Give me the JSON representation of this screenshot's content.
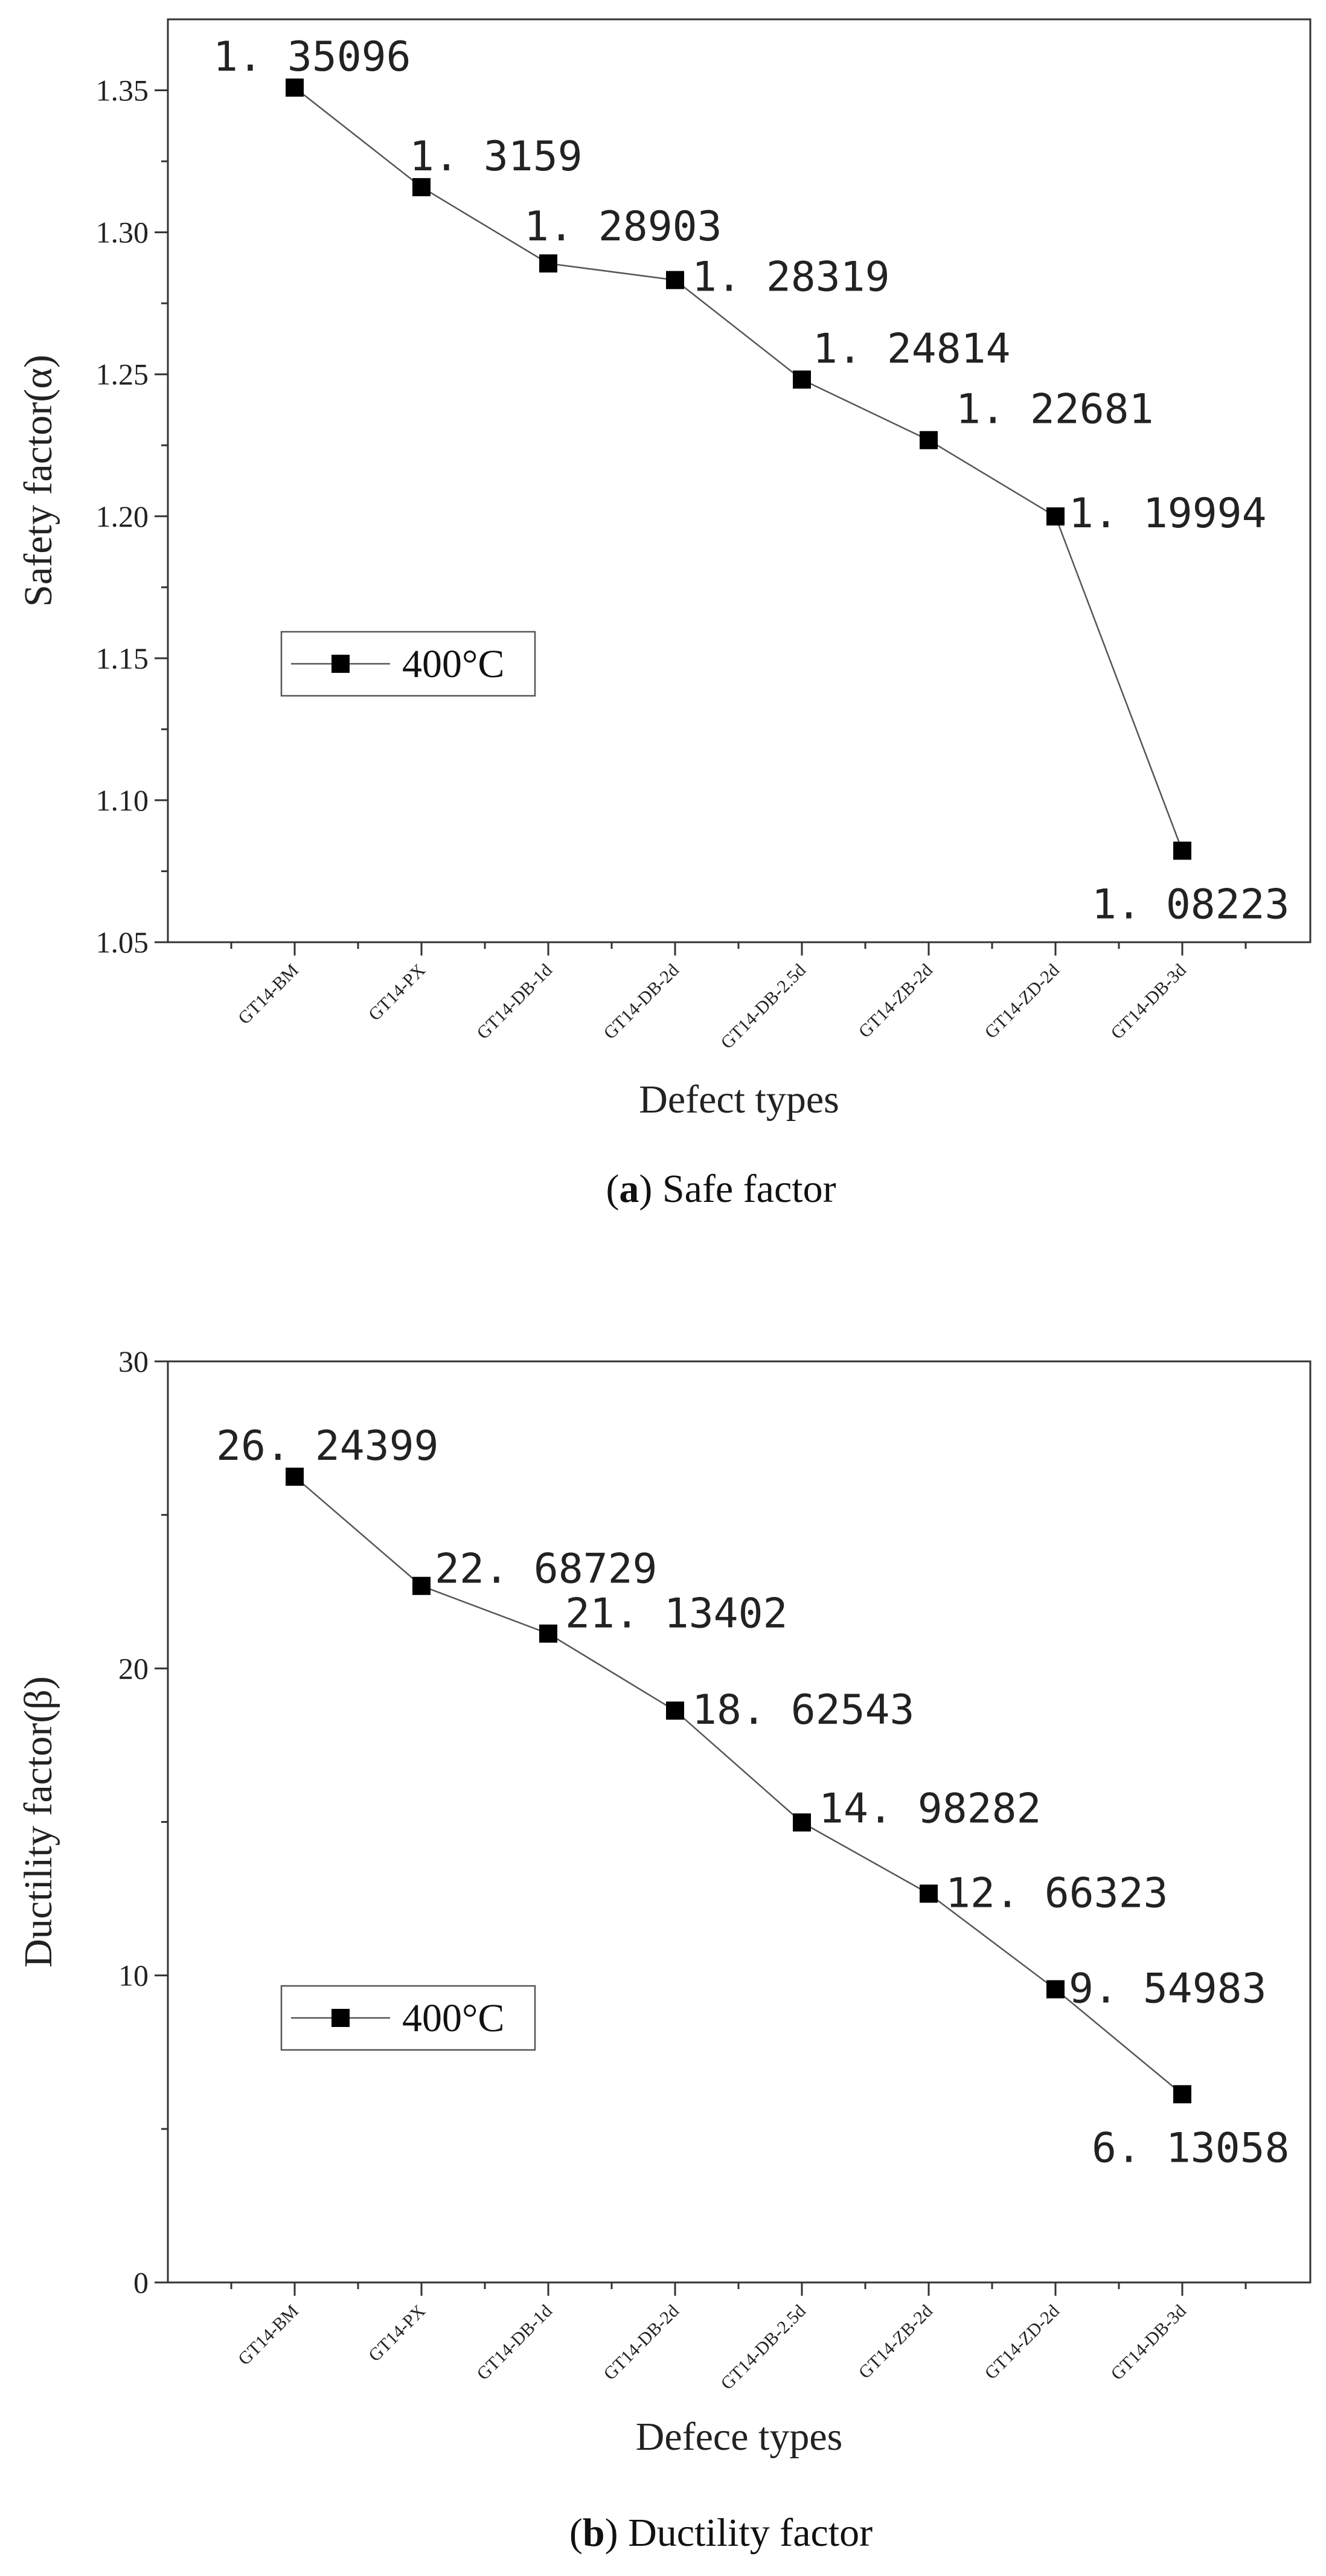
{
  "chart_data": [
    {
      "type": "line",
      "panel_letter": "a",
      "caption": "Safe factor",
      "xlabel": "Defect types",
      "ylabel": "Safety factor(α)",
      "categories": [
        "GT14-BM",
        "GT14-PX",
        "GT14-DB-1d",
        "GT14-DB-2d",
        "GT14-DB-2.5d",
        "GT14-ZB-2d",
        "GT14-ZD-2d",
        "GT14-DB-3d"
      ],
      "series": [
        {
          "name": "400°C",
          "values": [
            1.35096,
            1.3159,
            1.28903,
            1.28319,
            1.24814,
            1.22681,
            1.19994,
            1.08223
          ],
          "data_labels": [
            "1. 35096",
            "1. 3159",
            "1. 28903",
            "1. 28319",
            "1. 24814",
            "1. 22681",
            "1. 19994",
            "1. 08223"
          ]
        }
      ],
      "ylim": [
        1.05,
        1.375
      ],
      "yticks": [
        1.05,
        1.1,
        1.15,
        1.2,
        1.25,
        1.3,
        1.35
      ],
      "ytick_labels": [
        "1.05",
        "1.10",
        "1.15",
        "1.20",
        "1.25",
        "1.30",
        "1.35"
      ],
      "legend_position": "middle-left"
    },
    {
      "type": "line",
      "panel_letter": "b",
      "caption": "Ductility factor",
      "xlabel": "Defece types",
      "ylabel": "Ductility factor(β)",
      "categories": [
        "GT14-BM",
        "GT14-PX",
        "GT14-DB-1d",
        "GT14-DB-2d",
        "GT14-DB-2.5d",
        "GT14-ZB-2d",
        "GT14-ZD-2d",
        "GT14-DB-3d"
      ],
      "series": [
        {
          "name": "400°C",
          "values": [
            26.24399,
            22.68729,
            21.13402,
            18.62543,
            14.98282,
            12.66323,
            9.54983,
            6.13058
          ],
          "data_labels": [
            "26. 24399",
            "22. 68729",
            "21. 13402",
            "18. 62543",
            "14. 98282",
            "12. 66323",
            "9. 54983",
            "6. 13058"
          ]
        }
      ],
      "ylim": [
        0,
        30
      ],
      "yticks": [
        0,
        10,
        20,
        30
      ],
      "ytick_labels": [
        "0",
        "10",
        "20",
        "30"
      ],
      "legend_position": "lower-left"
    }
  ]
}
